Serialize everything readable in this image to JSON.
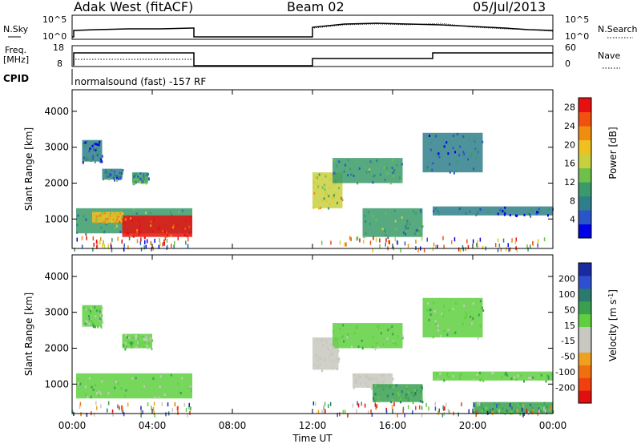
{
  "header": {
    "station": "Adak West (fitACF)",
    "beam": "Beam 02",
    "date": "05/Jul/2013"
  },
  "strip": {
    "nsky_label": "N.Sky",
    "nsearch_label": "N.Search",
    "nsky_ticks": [
      "10^5",
      "10^0"
    ],
    "nsearch_ticks": [
      "10^5",
      "10^0"
    ],
    "freq_label": "Freq.",
    "freq_unit": "[MHz]",
    "freq_ticks": [
      "18",
      "8"
    ],
    "nave_label": "Nave",
    "nave_ticks": [
      "60",
      "0"
    ],
    "cpid_label": "CPID",
    "cpid_text": "normalsound (fast) -157 RF"
  },
  "colors": {
    "power_scale": [
      "#0000e6",
      "#2a55c8",
      "#2f7f8a",
      "#3a9a6a",
      "#6fc04a",
      "#c8d040",
      "#f0c020",
      "#f08c10",
      "#f05010",
      "#e61010"
    ],
    "velocity_scale": [
      "#1a2aa0",
      "#2e50d0",
      "#2a7a6e",
      "#3aa050",
      "#5fcf40",
      "#c8c8c0",
      "#c8c8c0",
      "#f0a020",
      "#f07010",
      "#f04010",
      "#e01010"
    ]
  },
  "chart_data": [
    {
      "type": "heatmap",
      "parameter": "Power",
      "xlabel": "",
      "ylabel": "Slant Range [km]",
      "colorbar_label": "Power [dB]",
      "x_ticks": [
        "00:00",
        "04:00",
        "08:00",
        "12:00",
        "16:00",
        "20:00",
        "00:00"
      ],
      "y_ticks": [
        1000,
        2000,
        3000,
        4000
      ],
      "xlim": [
        0,
        24
      ],
      "ylim": [
        180,
        4600
      ],
      "colorbar_ticks": [
        4,
        8,
        12,
        16,
        20,
        24,
        28
      ],
      "colorbar_range": [
        0,
        30
      ],
      "data_gaps_ut_hours": [
        [
          6.0,
          12.0
        ]
      ],
      "regions": [
        {
          "t0": 0.2,
          "t1": 6.0,
          "r0": 600,
          "r1": 1300,
          "value": 10
        },
        {
          "t0": 2.5,
          "t1": 6.0,
          "r0": 500,
          "r1": 1100,
          "value": 28
        },
        {
          "t0": 1.0,
          "t1": 2.5,
          "r0": 900,
          "r1": 1200,
          "value": 20
        },
        {
          "t0": 0.5,
          "t1": 1.5,
          "r0": 2600,
          "r1": 3200,
          "value": 6
        },
        {
          "t0": 1.5,
          "t1": 2.5,
          "r0": 2100,
          "r1": 2400,
          "value": 8
        },
        {
          "t0": 3.0,
          "t1": 3.8,
          "r0": 2000,
          "r1": 2300,
          "value": 10
        },
        {
          "t0": 12.0,
          "t1": 13.5,
          "r0": 1300,
          "r1": 2300,
          "value": 16
        },
        {
          "t0": 13.0,
          "t1": 16.5,
          "r0": 2000,
          "r1": 2700,
          "value": 10
        },
        {
          "t0": 14.5,
          "t1": 17.5,
          "r0": 500,
          "r1": 1300,
          "value": 10
        },
        {
          "t0": 17.5,
          "t1": 20.5,
          "r0": 2300,
          "r1": 3400,
          "value": 6
        },
        {
          "t0": 18.0,
          "t1": 24.0,
          "r0": 1100,
          "r1": 1350,
          "value": 6
        }
      ]
    },
    {
      "type": "heatmap",
      "parameter": "Velocity",
      "xlabel": "Time UT",
      "ylabel": "Slant Range [km]",
      "colorbar_label": "Velocity [m s^-1]",
      "x_ticks": [
        "00:00",
        "04:00",
        "08:00",
        "12:00",
        "16:00",
        "20:00",
        "00:00"
      ],
      "y_ticks": [
        1000,
        2000,
        3000,
        4000
      ],
      "xlim": [
        0,
        24
      ],
      "ylim": [
        180,
        4600
      ],
      "colorbar_ticks": [
        200,
        100,
        50,
        15,
        -15,
        -50,
        -100,
        -200
      ],
      "data_gaps_ut_hours": [
        [
          6.0,
          12.0
        ]
      ],
      "regions": [
        {
          "t0": 0.2,
          "t1": 6.0,
          "r0": 600,
          "r1": 1300,
          "value": 0
        },
        {
          "t0": 0.5,
          "t1": 1.5,
          "r0": 2600,
          "r1": 3200,
          "value": 0
        },
        {
          "t0": 2.5,
          "t1": 4.0,
          "r0": 2000,
          "r1": 2400,
          "value": 0
        },
        {
          "t0": 12.0,
          "t1": 13.3,
          "r0": 1400,
          "r1": 2300,
          "value": -60
        },
        {
          "t0": 13.0,
          "t1": 16.5,
          "r0": 2000,
          "r1": 2700,
          "value": 0
        },
        {
          "t0": 14.0,
          "t1": 16.0,
          "r0": 900,
          "r1": 1300,
          "value": -60
        },
        {
          "t0": 15.0,
          "t1": 17.5,
          "r0": 500,
          "r1": 1000,
          "value": 30
        },
        {
          "t0": 17.5,
          "t1": 20.5,
          "r0": 2300,
          "r1": 3400,
          "value": 0
        },
        {
          "t0": 18.0,
          "t1": 24.0,
          "r0": 1100,
          "r1": 1350,
          "value": 0
        },
        {
          "t0": 20.0,
          "t1": 24.0,
          "r0": 180,
          "r1": 500,
          "value": 30
        }
      ]
    }
  ]
}
